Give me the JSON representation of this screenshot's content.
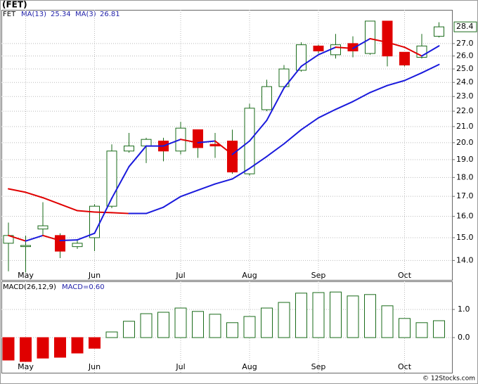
{
  "chart_data": [
    {
      "type": "candlestick",
      "title": "(FET)",
      "symbol": "FET",
      "categories": [
        null,
        "May",
        null,
        null,
        null,
        "Jun",
        null,
        null,
        null,
        null,
        "Jul",
        null,
        null,
        null,
        "Aug",
        null,
        null,
        null,
        "Sep",
        null,
        null,
        null,
        null,
        "Oct",
        null,
        null
      ],
      "open": [
        14.75,
        14.6,
        15.4,
        15.1,
        14.6,
        15.0,
        16.5,
        19.5,
        19.8,
        20.1,
        19.5,
        20.8,
        19.9,
        20.1,
        18.2,
        22.1,
        23.7,
        24.9,
        26.8,
        26.1,
        27.0,
        26.2,
        28.9,
        26.3,
        25.9,
        27.6
      ],
      "high": [
        15.7,
        15.1,
        16.7,
        15.2,
        14.9,
        16.6,
        19.9,
        20.6,
        20.3,
        20.3,
        21.3,
        20.8,
        20.6,
        20.8,
        22.5,
        24.2,
        25.3,
        27.1,
        26.9,
        27.8,
        27.6,
        28.9,
        28.9,
        26.3,
        27.8,
        28.8
      ],
      "low": [
        13.55,
        13.5,
        15.1,
        14.1,
        14.5,
        14.4,
        16.4,
        19.4,
        18.8,
        18.9,
        19.3,
        19.1,
        19.1,
        18.2,
        18.1,
        22.0,
        23.6,
        24.8,
        26.2,
        25.8,
        25.9,
        26.1,
        25.2,
        25.2,
        25.8,
        27.5
      ],
      "close": [
        15.1,
        14.65,
        15.55,
        14.4,
        14.75,
        16.5,
        19.5,
        19.8,
        20.2,
        19.5,
        20.9,
        19.7,
        19.8,
        18.3,
        22.2,
        23.7,
        25.0,
        26.9,
        26.4,
        26.9,
        26.4,
        28.9,
        26.0,
        25.3,
        26.8,
        28.4
      ],
      "up_color": "#ffffff",
      "down_color": "#e00000",
      "outline_color": "#1a6b1a",
      "series": [
        {
          "name": "MA(13)",
          "values": [
            17.39,
            17.21,
            16.93,
            16.6,
            16.28,
            16.21,
            16.18,
            16.14,
            16.14,
            16.45,
            16.99,
            17.32,
            17.65,
            17.92,
            18.5,
            19.18,
            19.93,
            20.8,
            21.56,
            22.12,
            22.65,
            23.28,
            23.78,
            24.14,
            24.71,
            25.34
          ]
        },
        {
          "name": "MA(3)",
          "values": [
            15.1,
            14.85,
            15.1,
            14.87,
            14.9,
            15.2,
            16.9,
            18.6,
            19.8,
            19.8,
            20.2,
            20.0,
            20.1,
            19.3,
            20.1,
            21.4,
            23.6,
            25.2,
            26.1,
            26.7,
            26.6,
            27.4,
            27.1,
            26.7,
            26.0,
            26.81
          ]
        }
      ],
      "rising_color": "#1a1adc",
      "falling_color": "#e00000",
      "legend_color": "#2222aa",
      "log_scale": true,
      "grid": true,
      "ylim": [
        13.2,
        29.9
      ],
      "yticks": [
        {
          "value": 14,
          "label": "14.0"
        },
        {
          "value": 15,
          "label": "15.0"
        },
        {
          "value": 16,
          "label": "16.0"
        },
        {
          "value": 17,
          "label": "17.0"
        },
        {
          "value": 18,
          "label": "18.0"
        },
        {
          "value": 19,
          "label": "19.0"
        },
        {
          "value": 20,
          "label": "20.0"
        },
        {
          "value": 21,
          "label": "21.0"
        },
        {
          "value": 22,
          "label": "22.0"
        },
        {
          "value": 23,
          "label": "23.0"
        },
        {
          "value": 24,
          "label": "24.0"
        },
        {
          "value": 25,
          "label": "25.0"
        },
        {
          "value": 26,
          "label": "26.0"
        },
        {
          "value": 27,
          "label": "27.0"
        }
      ]
    },
    {
      "type": "bar",
      "title": "MACD(26,12,9)",
      "legend_label": "MACD=0.60",
      "categories": [
        null,
        "May",
        null,
        null,
        null,
        "Jun",
        null,
        null,
        null,
        null,
        "Jul",
        null,
        null,
        null,
        "Aug",
        null,
        null,
        null,
        "Sep",
        null,
        null,
        null,
        null,
        "Oct",
        null,
        null
      ],
      "values": [
        -0.8,
        -0.85,
        -0.73,
        -0.7,
        -0.55,
        -0.38,
        0.2,
        0.58,
        0.85,
        0.9,
        1.05,
        0.93,
        0.83,
        0.53,
        0.75,
        1.05,
        1.25,
        1.58,
        1.6,
        1.62,
        1.48,
        1.53,
        1.13,
        0.68,
        0.53,
        0.6
      ],
      "positive_color": "#ffffff",
      "negative_color": "#e00000",
      "outline_color": "#1a6b1a",
      "ylim": [
        -1.25,
        2.0
      ],
      "grid": true,
      "yticks": [
        {
          "value": 0,
          "label": "0.0"
        },
        {
          "value": 1,
          "label": "1.0"
        }
      ]
    }
  ],
  "credit": "© 12Stocks.com"
}
